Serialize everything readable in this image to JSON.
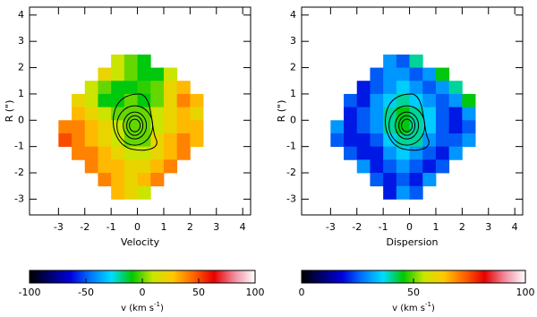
{
  "chart_data": [
    {
      "type": "heatmap",
      "xlabel": "Velocity",
      "ylabel": "R (\")",
      "xlim": [
        -4.1,
        4.3
      ],
      "ylim": [
        -3.6,
        4.3
      ],
      "xticks": [
        -3,
        -2,
        -1,
        0,
        1,
        2,
        3,
        4
      ],
      "yticks": [
        -3,
        -2,
        -1,
        0,
        1,
        2,
        3,
        4
      ],
      "x": [
        -2.75,
        -2.25,
        -1.75,
        -1.25,
        -0.75,
        -0.25,
        0.25,
        0.75,
        1.25,
        1.75,
        2.25
      ],
      "y": [
        2.25,
        1.75,
        1.25,
        0.75,
        0.25,
        -0.25,
        -0.75,
        -1.25,
        -1.75,
        -2.25,
        -2.75
      ],
      "z": [
        [
          null,
          null,
          null,
          null,
          10,
          0,
          -10,
          null,
          null,
          null,
          null
        ],
        [
          null,
          null,
          null,
          20,
          10,
          0,
          -10,
          -10,
          10,
          null,
          null
        ],
        [
          null,
          null,
          10,
          0,
          -10,
          -10,
          -5,
          0,
          20,
          30,
          null
        ],
        [
          null,
          20,
          10,
          -10,
          -10,
          0,
          -10,
          0,
          20,
          40,
          30
        ],
        [
          null,
          30,
          20,
          10,
          0,
          0,
          0,
          10,
          20,
          30,
          20
        ],
        [
          40,
          40,
          30,
          20,
          10,
          0,
          0,
          10,
          20,
          30,
          30
        ],
        [
          50,
          40,
          30,
          20,
          10,
          0,
          0,
          20,
          30,
          40,
          30
        ],
        [
          null,
          40,
          40,
          30,
          20,
          10,
          10,
          20,
          30,
          40,
          null
        ],
        [
          null,
          null,
          40,
          30,
          30,
          20,
          20,
          30,
          40,
          null,
          null
        ],
        [
          null,
          null,
          null,
          40,
          30,
          20,
          30,
          40,
          null,
          null,
          null
        ],
        [
          null,
          null,
          null,
          null,
          30,
          20,
          10,
          null,
          null,
          null,
          null
        ]
      ],
      "colorbar": {
        "lim": [
          -100,
          100
        ],
        "ticks": [
          -100,
          -50,
          0,
          50,
          100
        ],
        "label": {
          "text": "v (km s",
          "sup": "-1",
          "end": ")"
        }
      },
      "colormap": [
        "#000000",
        "#00006e",
        "#0000dc",
        "#0078ff",
        "#00dcff",
        "#00c800",
        "#c8e600",
        "#ffc800",
        "#ff6400",
        "#e60000",
        "#f08ca0",
        "#ffffff"
      ]
    },
    {
      "type": "heatmap",
      "xlabel": "Dispersion",
      "ylabel": "R (\")",
      "xlim": [
        -4.1,
        4.3
      ],
      "ylim": [
        -3.6,
        4.3
      ],
      "xticks": [
        -3,
        -2,
        -1,
        0,
        1,
        2,
        3,
        4
      ],
      "yticks": [
        -3,
        -2,
        -1,
        0,
        1,
        2,
        3,
        4
      ],
      "x": [
        -2.75,
        -2.25,
        -1.75,
        -1.25,
        -0.75,
        -0.25,
        0.25,
        0.75,
        1.25,
        1.75,
        2.25
      ],
      "y": [
        2.25,
        1.75,
        1.25,
        0.75,
        0.25,
        -0.25,
        -0.75,
        -1.25,
        -1.75,
        -2.25,
        -2.75
      ],
      "z": [
        [
          null,
          null,
          null,
          null,
          30,
          25,
          40,
          null,
          null,
          null,
          null
        ],
        [
          null,
          null,
          null,
          25,
          30,
          30,
          25,
          30,
          45,
          null,
          null
        ],
        [
          null,
          null,
          20,
          25,
          30,
          35,
          30,
          25,
          30,
          40,
          null
        ],
        [
          null,
          25,
          20,
          30,
          35,
          40,
          35,
          30,
          25,
          30,
          45
        ],
        [
          null,
          20,
          25,
          30,
          40,
          45,
          40,
          35,
          25,
          20,
          30
        ],
        [
          30,
          20,
          25,
          30,
          40,
          45,
          40,
          35,
          25,
          20,
          25
        ],
        [
          25,
          20,
          20,
          25,
          35,
          40,
          40,
          30,
          25,
          25,
          30
        ],
        [
          null,
          25,
          20,
          20,
          30,
          35,
          30,
          25,
          20,
          30,
          null
        ],
        [
          null,
          null,
          30,
          20,
          25,
          30,
          25,
          20,
          25,
          null,
          null
        ],
        [
          null,
          null,
          null,
          25,
          20,
          25,
          20,
          30,
          null,
          null,
          null
        ],
        [
          null,
          null,
          null,
          null,
          20,
          30,
          25,
          null,
          null,
          null,
          null
        ]
      ],
      "colorbar": {
        "lim": [
          0,
          100
        ],
        "ticks": [
          0,
          50,
          100
        ],
        "label": {
          "text": "v (km s",
          "sup": "-1",
          "end": ")"
        }
      },
      "colormap": [
        "#000000",
        "#00006e",
        "#0000dc",
        "#0078ff",
        "#00dcff",
        "#00c800",
        "#c8e600",
        "#ffc800",
        "#ff6400",
        "#e60000",
        "#f08ca0",
        "#ffffff"
      ]
    }
  ]
}
